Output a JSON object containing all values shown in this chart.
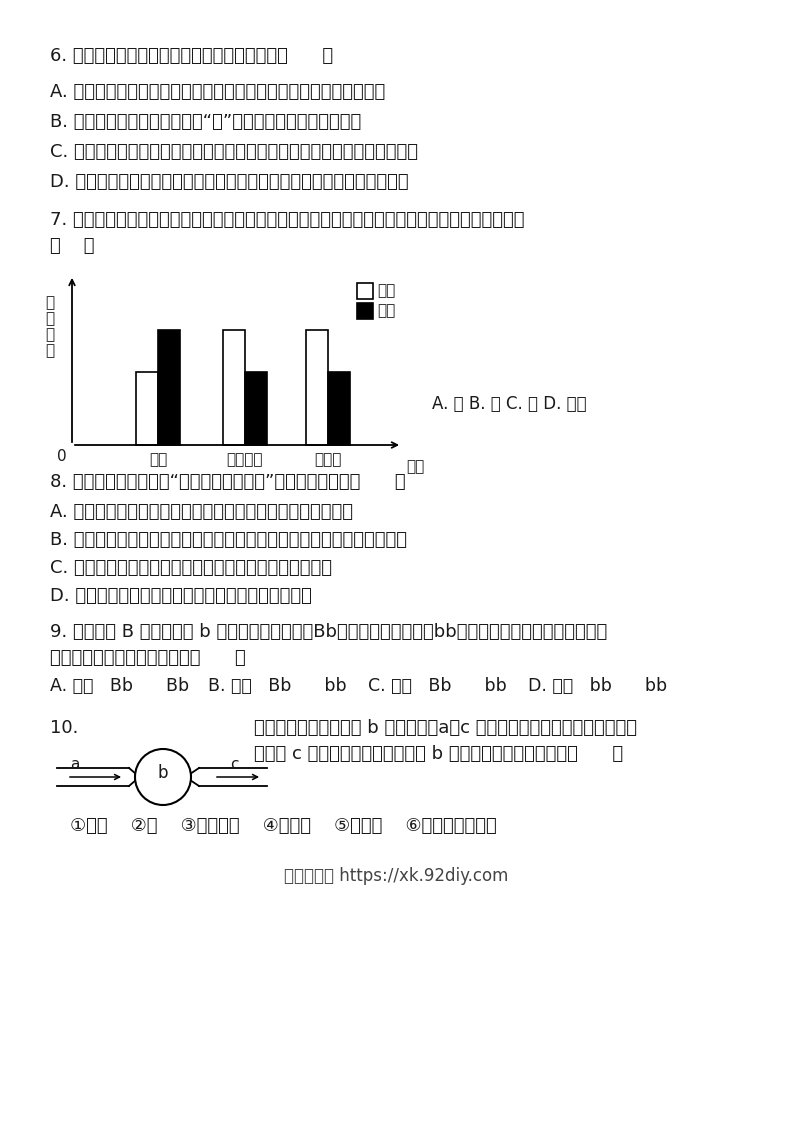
{
  "page_bg": "#ffffff",
  "font_color": "#1a1a1a",
  "q6_text": "6. 下列对生活中的生物技术的叙述，正确的是（      ）",
  "q6_A": "A. 白酒和葡萄酒制作过程都要经过霾菌的糖化和酵母菌的发酵等阶段",
  "q6_B": "B. 制作白酒和葡萄酒等用到的“菌”和香菇一样都是营腐生生活",
  "q6_C": "C. 在果蔬贮藏场所适当降低氧气浓度的主要目的是抑制微生物的生长与繁殖",
  "q6_D": "D. 制作酸奶过程的实质是乳酸菌在适宜条件下将奶中的蛋白质转化成乳酸",
  "q7_text1": "7. 在某一时刻测定某一器官的动脉和静脉的血液内三种物质含量，其相对数值如图所示，该器官是",
  "q7_text2": "（    ）",
  "q7_options": "A. 肺 B. 脑 C. 肾 D. 小肠",
  "chart_categories": [
    "氧气",
    "二氧化碳",
    "葡萄糖"
  ],
  "chart_artery": [
    3.5,
    5.5,
    5.5
  ],
  "chart_vein": [
    5.5,
    3.5,
    3.5
  ],
  "chart_legend_artery": "动脉",
  "chart_legend_vein": "静脉",
  "chart_ylabel": "相\n对\n含\n量",
  "chart_xlabel": "物质",
  "q8_text": "8. 下列叙述中，不符合“结构与功能相适应”生物学观点的是（      ）",
  "q8_A": "A. 肺泡壁和毛细血管壁都由一层上皮细胞构成，利于气体交换",
  "q8_B": "B. 根尖成熟区表皮细胞一部分向外突出形成根毛，利于吸收水分和无机盐",
  "q8_C": "C. 神经元有许多突起有利于接受刺激产生冲动并传导冲动",
  "q8_D": "D. 心脏中瓣膜的存在可以使动脉血和静脉血完全分开",
  "q9_text1": "9. 毛桃基因 B 对滑桃基因 b 为显性，现将毛桃（Bb）的花粉授给滑桃（bb）的雌蕊柱头，该雌蕊所结果实",
  "q9_text2": "的性状和种子的基因型分别为（      ）",
  "q9_opt_A": "A. 毛桃   Bb      Bb",
  "q9_opt_B": "B. 毛桃   Bb      bb",
  "q9_opt_C": "C. 滑桃   Bb      bb",
  "q9_opt_D": "D. 滑桃   bb      bb",
  "q10_num": "10.",
  "q10_text1": "如图是血液流经某器官 b 的示意图，a、c 表示血管，箭头表示血液流动的方",
  "q10_text2": "向，若 c 血管内流动脉血，你认为 b 可能代表的器官和结构是（      ）",
  "q10_opts": "①大脑    ②肺    ③小肠绒毛    ④肾小球    ⑤肾小管    ⑥左心房、左心室",
  "footer": "智源优学网 https://xk.92diy.com"
}
